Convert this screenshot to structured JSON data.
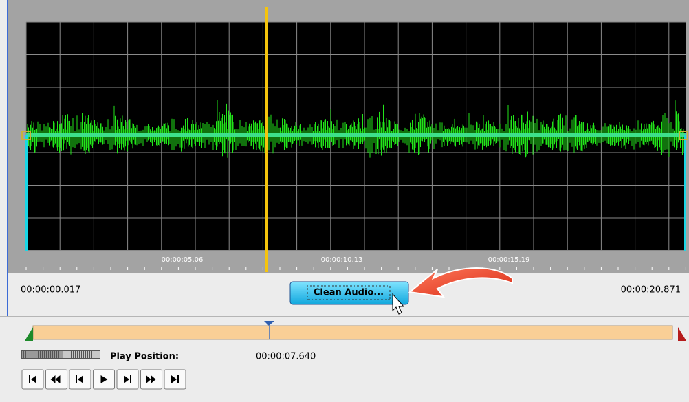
{
  "ruler": {
    "labels": [
      "00:00:05.06",
      "00:00:10.13",
      "00:00:15.19"
    ]
  },
  "range": {
    "start": "00:00:00.017",
    "end": "00:00:20.871"
  },
  "button": {
    "label": "Clean Audio..."
  },
  "play": {
    "label": "Play Position:",
    "time": "00:00:07.640"
  }
}
